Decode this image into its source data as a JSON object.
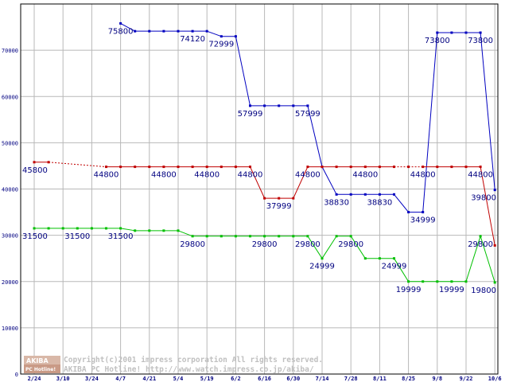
{
  "chart_data": {
    "type": "line",
    "categories": [
      "2/24",
      "3/3",
      "3/10",
      "3/17",
      "3/24",
      "3/31",
      "4/7",
      "4/14",
      "4/21",
      "4/28",
      "5/4",
      "5/12",
      "5/19",
      "5/26",
      "6/2",
      "6/9",
      "6/16",
      "6/23",
      "6/30",
      "7/7",
      "7/14",
      "7/21",
      "7/28",
      "8/4",
      "8/11",
      "8/18",
      "8/25",
      "9/1",
      "9/8",
      "9/15",
      "9/22",
      "9/29",
      "10/6"
    ],
    "x_tick_labels": [
      "2/24",
      "3/10",
      "3/24",
      "4/7",
      "4/21",
      "5/4",
      "5/19",
      "6/2",
      "6/16",
      "6/30",
      "7/14",
      "7/28",
      "8/11",
      "8/25",
      "9/8",
      "9/22",
      "10/6"
    ],
    "x_tick_index": [
      0,
      2,
      4,
      6,
      8,
      10,
      12,
      14,
      16,
      18,
      20,
      22,
      24,
      26,
      28,
      30,
      32
    ],
    "ylim": [
      0,
      80000
    ],
    "y_ticks": [
      "0",
      "10000",
      "20000",
      "30000",
      "40000",
      "50000",
      "60000",
      "70000"
    ],
    "y_tick_values": [
      0,
      10000,
      20000,
      30000,
      40000,
      50000,
      60000,
      70000
    ],
    "grid": true,
    "series": [
      {
        "color": "#0000c0",
        "values": [
          null,
          null,
          null,
          null,
          null,
          null,
          75800,
          74120,
          74120,
          74120,
          74120,
          74120,
          74120,
          72999,
          72999,
          57999,
          57999,
          57999,
          57999,
          57999,
          44800,
          38830,
          38830,
          38830,
          38830,
          38830,
          34999,
          34999,
          73800,
          73800,
          73800,
          73800,
          39800
        ],
        "dashed_segments": []
      },
      {
        "color": "#c00000",
        "values": [
          45800,
          45800,
          null,
          null,
          null,
          44800,
          44800,
          44800,
          44800,
          44800,
          44800,
          44800,
          44800,
          44800,
          44800,
          44800,
          37999,
          37999,
          37999,
          44800,
          44800,
          44800,
          44800,
          44800,
          44800,
          44800,
          44800,
          44800,
          44800,
          44800,
          44800,
          44800,
          27800
        ],
        "dashed_segments": [
          1,
          2,
          3,
          4,
          25,
          26
        ]
      },
      {
        "color": "#00c000",
        "values": [
          31500,
          31500,
          31500,
          31500,
          31500,
          31500,
          31500,
          31000,
          31000,
          31000,
          31000,
          29800,
          29800,
          29800,
          29800,
          29800,
          29800,
          29800,
          29800,
          29800,
          24999,
          29800,
          29800,
          24999,
          24999,
          24999,
          19999,
          19999,
          19999,
          19999,
          19999,
          29800,
          19800
        ],
        "dashed_segments": []
      }
    ],
    "data_labels": [
      {
        "text": "75800",
        "series": 0,
        "index": 6
      },
      {
        "text": "74120",
        "series": 0,
        "index": 11
      },
      {
        "text": "72999",
        "series": 0,
        "index": 13
      },
      {
        "text": "57999",
        "series": 0,
        "index": 15
      },
      {
        "text": "57999",
        "series": 0,
        "index": 19
      },
      {
        "text": "38830",
        "series": 0,
        "index": 21
      },
      {
        "text": "38830",
        "series": 0,
        "index": 24
      },
      {
        "text": "34999",
        "series": 0,
        "index": 27
      },
      {
        "text": "73800",
        "series": 0,
        "index": 28
      },
      {
        "text": "73800",
        "series": 0,
        "index": 31
      },
      {
        "text": "39800",
        "series": 0,
        "index": 32
      },
      {
        "text": "45800",
        "series": 1,
        "index": 0
      },
      {
        "text": "44800",
        "series": 1,
        "index": 5
      },
      {
        "text": "44800",
        "series": 1,
        "index": 9
      },
      {
        "text": "44800",
        "series": 1,
        "index": 12
      },
      {
        "text": "44800",
        "series": 1,
        "index": 15
      },
      {
        "text": "37999",
        "series": 1,
        "index": 17
      },
      {
        "text": "44800",
        "series": 1,
        "index": 19
      },
      {
        "text": "44800",
        "series": 1,
        "index": 23
      },
      {
        "text": "44800",
        "series": 1,
        "index": 27
      },
      {
        "text": "44800",
        "series": 1,
        "index": 31
      },
      {
        "text": "31500",
        "series": 2,
        "index": 0
      },
      {
        "text": "31500",
        "series": 2,
        "index": 3
      },
      {
        "text": "31500",
        "series": 2,
        "index": 6
      },
      {
        "text": "29800",
        "series": 2,
        "index": 11
      },
      {
        "text": "29800",
        "series": 2,
        "index": 16
      },
      {
        "text": "29800",
        "series": 2,
        "index": 19
      },
      {
        "text": "24999",
        "series": 2,
        "index": 20
      },
      {
        "text": "29800",
        "series": 2,
        "index": 22
      },
      {
        "text": "24999",
        "series": 2,
        "index": 25
      },
      {
        "text": "19999",
        "series": 2,
        "index": 26
      },
      {
        "text": "19999",
        "series": 2,
        "index": 29
      },
      {
        "text": "29800",
        "series": 2,
        "index": 31
      },
      {
        "text": "19800",
        "series": 2,
        "index": 32
      }
    ]
  },
  "watermark": {
    "logo_top": "AKIBA",
    "logo_bottom": "PC Hotline!",
    "line1": "Copyright(c)2001 impress corporation All rights reserved.",
    "line2": "AKIBA PC Hotline!  http://www.watch.impress.co.jp/akiba/"
  }
}
